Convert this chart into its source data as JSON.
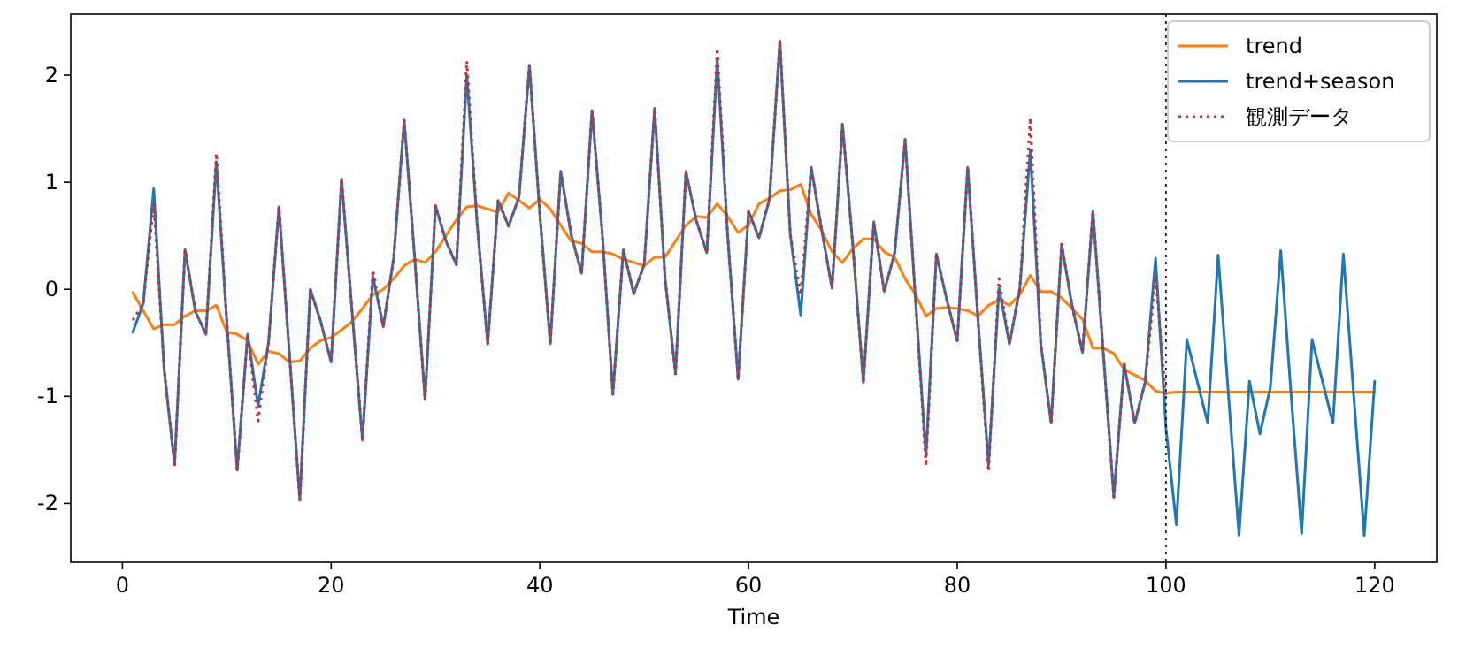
{
  "chart_data": {
    "type": "line",
    "xlabel": "Time",
    "xlim": [
      -4.95,
      125.95
    ],
    "ylim": [
      -2.55,
      2.57
    ],
    "xticks": [
      0,
      20,
      40,
      60,
      80,
      100,
      120
    ],
    "yticks": [
      -2,
      -1,
      0,
      1,
      2
    ],
    "legend": "top right",
    "x": [
      1,
      2,
      3,
      4,
      5,
      6,
      7,
      8,
      9,
      10,
      11,
      12,
      13,
      14,
      15,
      16,
      17,
      18,
      19,
      20,
      21,
      22,
      23,
      24,
      25,
      26,
      27,
      28,
      29,
      30,
      31,
      32,
      33,
      34,
      35,
      36,
      37,
      38,
      39,
      40,
      41,
      42,
      43,
      44,
      45,
      46,
      47,
      48,
      49,
      50,
      51,
      52,
      53,
      54,
      55,
      56,
      57,
      58,
      59,
      60,
      61,
      62,
      63,
      64,
      65,
      66,
      67,
      68,
      69,
      70,
      71,
      72,
      73,
      74,
      75,
      76,
      77,
      78,
      79,
      80,
      81,
      82,
      83,
      84,
      85,
      86,
      87,
      88,
      89,
      90,
      91,
      92,
      93,
      94,
      95,
      96,
      97,
      98,
      99,
      100,
      101,
      102,
      103,
      104,
      105,
      106,
      107,
      108,
      109,
      110,
      111,
      112,
      113,
      114,
      115,
      116,
      117,
      118,
      119,
      120
    ],
    "series": [
      {
        "name": "trend",
        "color": "#ff7f0e",
        "line_style": "solid",
        "values": [
          -0.03,
          -0.2,
          -0.37,
          -0.33,
          -0.33,
          -0.25,
          -0.2,
          -0.2,
          -0.15,
          -0.4,
          -0.42,
          -0.48,
          -0.7,
          -0.58,
          -0.6,
          -0.68,
          -0.67,
          -0.55,
          -0.48,
          -0.45,
          -0.38,
          -0.3,
          -0.18,
          -0.05,
          0.0,
          0.1,
          0.22,
          0.28,
          0.25,
          0.35,
          0.5,
          0.65,
          0.77,
          0.78,
          0.75,
          0.72,
          0.9,
          0.83,
          0.76,
          0.84,
          0.75,
          0.6,
          0.45,
          0.43,
          0.35,
          0.35,
          0.33,
          0.28,
          0.25,
          0.22,
          0.3,
          0.3,
          0.45,
          0.6,
          0.68,
          0.67,
          0.8,
          0.68,
          0.53,
          0.6,
          0.8,
          0.85,
          0.92,
          0.93,
          0.98,
          0.7,
          0.55,
          0.35,
          0.25,
          0.38,
          0.47,
          0.47,
          0.35,
          0.3,
          0.1,
          -0.05,
          -0.25,
          -0.18,
          -0.17,
          -0.18,
          -0.2,
          -0.25,
          -0.15,
          -0.1,
          -0.15,
          -0.05,
          0.13,
          -0.02,
          -0.02,
          -0.08,
          -0.18,
          -0.28,
          -0.55,
          -0.55,
          -0.6,
          -0.75,
          -0.8,
          -0.85,
          -0.95,
          -0.97,
          -0.96,
          -0.96,
          -0.96,
          -0.96,
          -0.96,
          -0.96,
          -0.96,
          -0.96,
          -0.96,
          -0.96,
          -0.96,
          -0.96,
          -0.96,
          -0.96,
          -0.96,
          -0.96,
          -0.96,
          -0.96,
          -0.96,
          -0.96
        ]
      },
      {
        "name": "trend+season",
        "color": "#1f77b4",
        "line_style": "solid",
        "values": [
          -0.4,
          -0.13,
          0.94,
          -0.75,
          -1.64,
          0.37,
          -0.21,
          -0.42,
          1.19,
          -0.3,
          -1.69,
          -0.42,
          -1.09,
          -0.5,
          0.77,
          -0.6,
          -1.97,
          0.0,
          -0.3,
          -0.68,
          1.03,
          -0.2,
          -1.41,
          0.12,
          -0.35,
          0.3,
          1.58,
          0.3,
          -1.03,
          0.78,
          0.45,
          0.23,
          2.0,
          0.6,
          -0.51,
          0.83,
          0.59,
          0.86,
          2.09,
          0.7,
          -0.51,
          1.1,
          0.51,
          0.15,
          1.67,
          0.5,
          -0.98,
          0.37,
          -0.04,
          0.23,
          1.69,
          0.1,
          -0.79,
          1.1,
          0.64,
          0.34,
          2.15,
          0.5,
          -0.84,
          0.73,
          0.48,
          0.84,
          2.32,
          0.51,
          -0.24,
          1.14,
          0.56,
          0.01,
          1.54,
          0.4,
          -0.87,
          0.63,
          -0.02,
          0.34,
          1.4,
          -0.1,
          -1.56,
          0.33,
          -0.1,
          -0.48,
          1.14,
          -0.3,
          -1.64,
          0.01,
          -0.51,
          0.01,
          1.3,
          -0.5,
          -1.25,
          0.42,
          -0.15,
          -0.59,
          0.73,
          -0.6,
          -1.94,
          -0.7,
          -1.25,
          -0.87,
          0.29,
          -1.3,
          -2.2,
          -0.47,
          -0.86,
          -1.25,
          0.32,
          -1.0,
          -2.3,
          -0.86,
          -1.35,
          -0.92,
          0.36,
          -1.0,
          -2.28,
          -0.47,
          -0.86,
          -1.25,
          0.33,
          -1.0,
          -2.3,
          -0.86
        ]
      },
      {
        "name": "観測データ",
        "color": "#d62728",
        "line_style": "dotted",
        "values": [
          -0.29,
          -0.13,
          0.8,
          -0.75,
          -1.64,
          0.37,
          -0.21,
          -0.42,
          1.27,
          -0.3,
          -1.69,
          -0.42,
          -1.23,
          -0.5,
          0.77,
          -0.6,
          -1.97,
          0.0,
          -0.3,
          -0.68,
          1.03,
          -0.2,
          -1.41,
          0.18,
          -0.35,
          0.3,
          1.58,
          0.3,
          -1.03,
          0.78,
          0.45,
          0.23,
          2.13,
          0.6,
          -0.51,
          0.83,
          0.59,
          0.86,
          2.09,
          0.7,
          -0.51,
          1.1,
          0.51,
          0.15,
          1.67,
          0.5,
          -0.98,
          0.37,
          -0.04,
          0.23,
          1.69,
          0.1,
          -0.79,
          1.1,
          0.64,
          0.34,
          2.25,
          0.5,
          -0.84,
          0.73,
          0.48,
          0.84,
          2.32,
          0.51,
          -0.05,
          1.14,
          0.56,
          0.01,
          1.54,
          0.4,
          -0.87,
          0.63,
          -0.02,
          0.34,
          1.4,
          -0.1,
          -1.65,
          0.33,
          -0.1,
          -0.48,
          1.14,
          -0.3,
          -1.7,
          0.1,
          -0.51,
          0.01,
          1.6,
          -0.5,
          -1.25,
          0.42,
          -0.15,
          -0.59,
          0.73,
          -0.6,
          -1.94,
          -0.7,
          -1.25,
          -0.87,
          0.12,
          -1.03,
          null,
          null,
          null,
          null,
          null,
          null,
          null,
          null,
          null,
          null,
          null,
          null,
          null,
          null,
          null,
          null,
          null,
          null,
          null,
          null
        ]
      }
    ],
    "ref_lines": [
      {
        "axis": "x",
        "value": 100,
        "color": "#000000",
        "line_style": "dotted"
      }
    ]
  }
}
